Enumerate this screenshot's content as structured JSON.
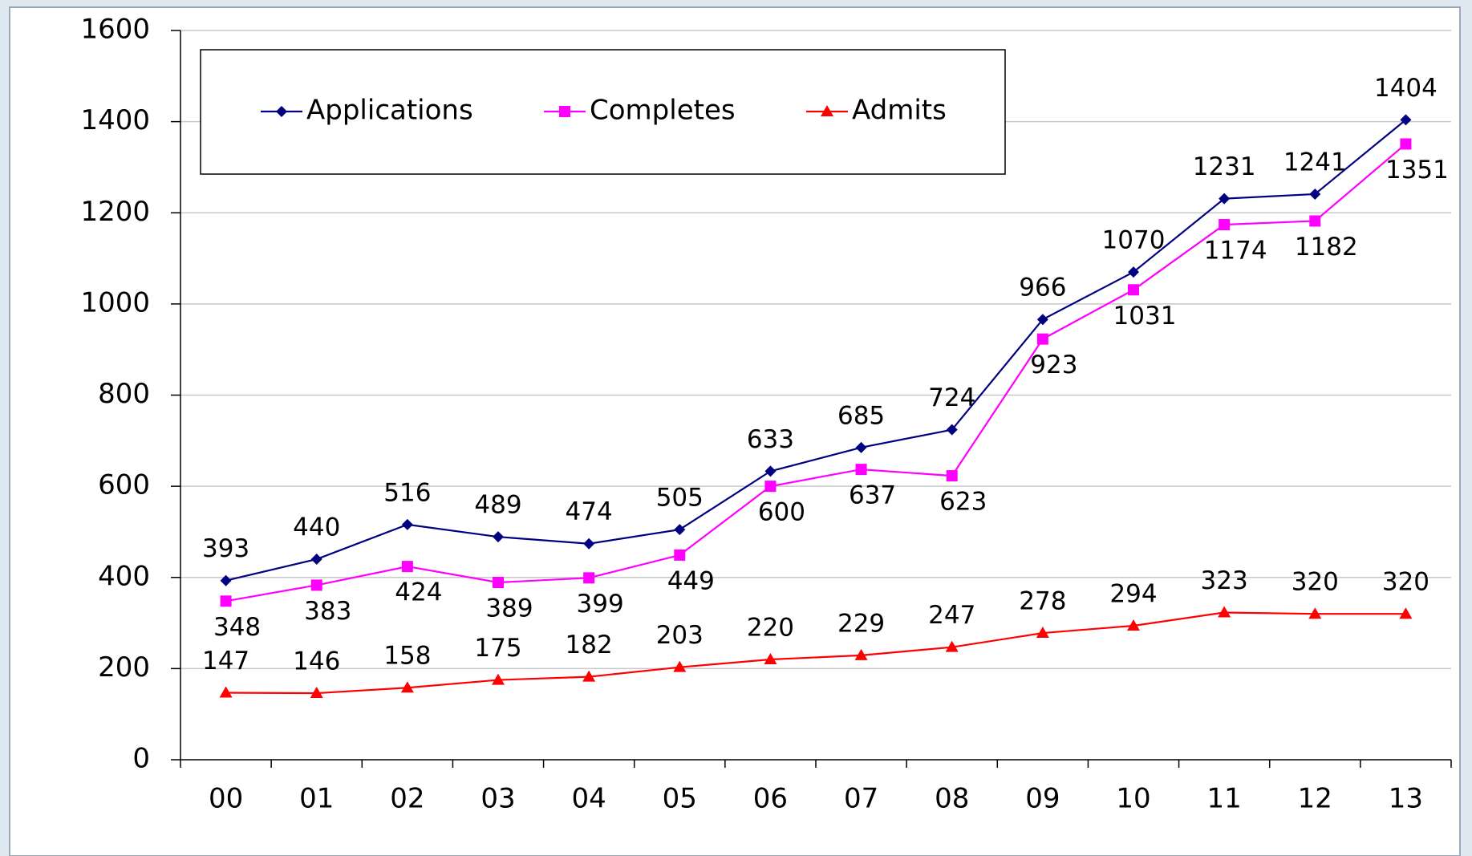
{
  "chart_data": {
    "type": "line",
    "categories": [
      "00",
      "01",
      "02",
      "03",
      "04",
      "05",
      "06",
      "07",
      "08",
      "09",
      "10",
      "11",
      "12",
      "13"
    ],
    "series": [
      {
        "name": "Applications",
        "color": "#000080",
        "marker": "diamond",
        "values": [
          393,
          440,
          516,
          489,
          474,
          505,
          633,
          685,
          724,
          966,
          1070,
          1231,
          1241,
          1404
        ]
      },
      {
        "name": "Completes",
        "color": "#ff00ff",
        "marker": "square",
        "values": [
          348,
          383,
          424,
          389,
          399,
          449,
          600,
          637,
          623,
          923,
          1031,
          1174,
          1182,
          1351
        ]
      },
      {
        "name": "Admits",
        "color": "#ff0000",
        "marker": "triangle",
        "values": [
          147,
          146,
          158,
          175,
          182,
          203,
          220,
          229,
          247,
          278,
          294,
          323,
          320,
          320
        ]
      }
    ],
    "ylim": [
      0,
      1600
    ],
    "yticks": [
      0,
      200,
      400,
      600,
      800,
      1000,
      1200,
      1400,
      1600
    ],
    "grid": true,
    "legend": "top-left"
  }
}
